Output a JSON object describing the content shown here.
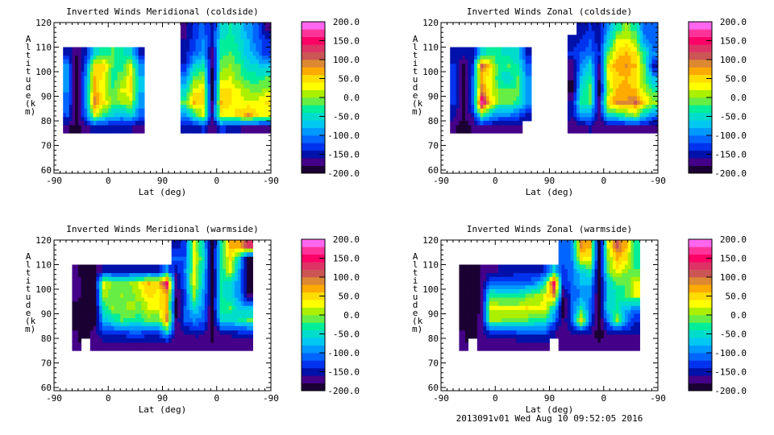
{
  "footer": "2013091v01 Wed Aug 10 09:52:05 2016",
  "colorbar": {
    "levels_min": -200,
    "levels_max": 200,
    "step": 20,
    "labels": [
      "200.0",
      "150.0",
      "100.0",
      "50.0",
      "0.0",
      "-50.0",
      "-100.0",
      "-150.0",
      "-200.0"
    ],
    "label_values": [
      200,
      150,
      100,
      50,
      0,
      -50,
      -100,
      -150,
      -200
    ],
    "colors": [
      "#1a0033",
      "#440088",
      "#0011aa",
      "#0033ee",
      "#0066ff",
      "#0099ff",
      "#00c8f0",
      "#00dccc",
      "#00ee99",
      "#66ee44",
      "#aaf000",
      "#ffff00",
      "#ffdd00",
      "#ffaa00",
      "#dd8833",
      "#cc5555",
      "#dd3366",
      "#ff0066",
      "#ff3399",
      "#ff66ee"
    ]
  },
  "chart_data": [
    {
      "type": "heatmap",
      "title": "Inverted Winds Meridional (coldside)",
      "xlabel": "Lat (deg)",
      "ylabel": "Altitude (km)",
      "xticks": [
        "-90",
        "0",
        "90",
        "0",
        "-90"
      ],
      "yticks": [
        "60",
        "70",
        "80",
        "90",
        "100",
        "110",
        "120"
      ],
      "ylim": [
        58.7,
        120
      ],
      "x_orbit_range": [
        0,
        360
      ],
      "x_step": 15,
      "alt_rows": [
        115,
        110,
        105,
        100,
        95,
        90,
        85,
        80,
        75
      ],
      "alt_step": 5,
      "values": [
        [
          null,
          null,
          null,
          null,
          null,
          null,
          null,
          null,
          null,
          null,
          null,
          null,
          null,
          null,
          -170,
          -140,
          -110,
          -150,
          -60,
          -40,
          -60,
          -90,
          -110,
          -170
        ],
        [
          null,
          null,
          null,
          null,
          null,
          null,
          null,
          null,
          null,
          null,
          null,
          null,
          null,
          null,
          -160,
          -130,
          -100,
          -150,
          -40,
          -30,
          -50,
          -80,
          -110,
          -140
        ],
        [
          null,
          -150,
          -180,
          -150,
          -60,
          -30,
          -20,
          -40,
          -60,
          -150,
          null,
          null,
          null,
          null,
          -150,
          -120,
          -90,
          -170,
          -30,
          -20,
          -40,
          -70,
          -100,
          -130
        ],
        [
          null,
          -100,
          -200,
          -120,
          40,
          50,
          -20,
          -30,
          20,
          -100,
          null,
          null,
          null,
          null,
          -140,
          -60,
          -40,
          -180,
          -10,
          0,
          -20,
          -50,
          -60,
          -80
        ],
        [
          null,
          -100,
          -200,
          -100,
          60,
          30,
          -30,
          -10,
          40,
          -80,
          null,
          null,
          null,
          null,
          -100,
          -10,
          0,
          -190,
          10,
          20,
          -10,
          -30,
          -30,
          -20
        ],
        [
          null,
          -100,
          -200,
          -90,
          70,
          20,
          -20,
          20,
          40,
          -80,
          null,
          null,
          null,
          null,
          -60,
          30,
          40,
          -190,
          50,
          40,
          20,
          0,
          -10,
          10
        ],
        [
          null,
          -110,
          -200,
          -90,
          90,
          40,
          -10,
          0,
          10,
          -90,
          null,
          null,
          null,
          null,
          -20,
          60,
          50,
          -180,
          60,
          40,
          30,
          20,
          30,
          40
        ],
        [
          null,
          -120,
          -190,
          -110,
          20,
          -30,
          -60,
          -70,
          -60,
          -110,
          null,
          null,
          null,
          null,
          -90,
          -40,
          20,
          -160,
          30,
          30,
          50,
          80,
          40,
          30
        ],
        [
          null,
          -180,
          -190,
          -170,
          -150,
          -160,
          -160,
          -160,
          -160,
          -170,
          null,
          null,
          null,
          null,
          -160,
          -150,
          -140,
          -180,
          -130,
          -150,
          -160,
          -170,
          -170,
          -170
        ]
      ]
    },
    {
      "type": "heatmap",
      "title": "Inverted Winds Zonal (coldside)",
      "xlabel": "Lat (deg)",
      "ylabel": "Altitude (km)",
      "xticks": [
        "-90",
        "0",
        "90",
        "0",
        "-90"
      ],
      "yticks": [
        "60",
        "70",
        "80",
        "90",
        "100",
        "110",
        "120"
      ],
      "ylim": [
        58.7,
        120
      ],
      "x_orbit_range": [
        0,
        360
      ],
      "x_step": 15,
      "alt_rows": [
        115,
        110,
        105,
        100,
        95,
        90,
        85,
        80,
        75
      ],
      "alt_step": 5,
      "values": [
        [
          null,
          null,
          null,
          null,
          null,
          null,
          null,
          null,
          null,
          null,
          null,
          null,
          null,
          null,
          null,
          -150,
          -140,
          -150,
          -90,
          -30,
          0,
          -30,
          -110,
          -120
        ],
        [
          null,
          null,
          null,
          null,
          null,
          null,
          null,
          null,
          null,
          null,
          null,
          null,
          null,
          null,
          -160,
          -140,
          -120,
          -150,
          -60,
          20,
          30,
          0,
          -90,
          -110
        ],
        [
          null,
          -150,
          -150,
          -160,
          -60,
          -30,
          -40,
          -50,
          -60,
          -150,
          null,
          null,
          null,
          null,
          -140,
          -120,
          -110,
          -140,
          -20,
          50,
          60,
          40,
          -40,
          -100
        ],
        [
          null,
          -140,
          -190,
          -130,
          100,
          40,
          -40,
          -20,
          -40,
          -110,
          null,
          null,
          null,
          null,
          -180,
          -100,
          -60,
          -170,
          40,
          70,
          80,
          60,
          -20,
          -150
        ],
        [
          null,
          -140,
          -190,
          -120,
          60,
          20,
          -40,
          -60,
          -20,
          -100,
          null,
          null,
          null,
          null,
          -180,
          -70,
          -30,
          -180,
          20,
          50,
          60,
          40,
          -10,
          -80
        ],
        [
          null,
          -140,
          -190,
          -120,
          90,
          20,
          -10,
          -20,
          -10,
          -100,
          null,
          null,
          null,
          null,
          -190,
          -50,
          -10,
          -190,
          0,
          60,
          70,
          60,
          10,
          -30
        ],
        [
          null,
          -140,
          -190,
          -120,
          170,
          50,
          -20,
          -10,
          -30,
          -90,
          null,
          null,
          null,
          null,
          -160,
          -30,
          -20,
          -170,
          50,
          80,
          80,
          100,
          50,
          0
        ],
        [
          null,
          -150,
          -190,
          -150,
          -20,
          -80,
          -100,
          -100,
          -120,
          -150,
          null,
          null,
          null,
          null,
          -150,
          -90,
          -90,
          -170,
          -50,
          -40,
          -20,
          0,
          -60,
          -100
        ],
        [
          null,
          -180,
          -190,
          -180,
          -170,
          -170,
          -170,
          -170,
          -170,
          null,
          null,
          null,
          null,
          null,
          -180,
          -170,
          -160,
          -180,
          -170,
          -170,
          -170,
          -170,
          -170,
          -170
        ]
      ]
    },
    {
      "type": "heatmap",
      "title": "Inverted Winds Meridional (warmside)",
      "xlabel": "Lat (deg)",
      "ylabel": "Altitude (km)",
      "xticks": [
        "-90",
        "0",
        "90",
        "0",
        "-90"
      ],
      "yticks": [
        "60",
        "70",
        "80",
        "90",
        "100",
        "110",
        "120"
      ],
      "ylim": [
        58.7,
        120
      ],
      "x_orbit_range": [
        0,
        360
      ],
      "x_step": 15,
      "alt_rows": [
        115,
        110,
        105,
        100,
        95,
        90,
        85,
        80,
        75
      ],
      "alt_step": 5,
      "values": [
        [
          null,
          null,
          null,
          null,
          null,
          null,
          null,
          null,
          null,
          null,
          null,
          null,
          null,
          -150,
          -130,
          20,
          -60,
          -190,
          -40,
          60,
          70,
          120,
          null,
          null
        ],
        [
          null,
          null,
          null,
          null,
          null,
          null,
          null,
          null,
          null,
          null,
          null,
          null,
          null,
          -120,
          -120,
          30,
          -40,
          -190,
          -30,
          40,
          -60,
          -190,
          null,
          null
        ],
        [
          null,
          null,
          -180,
          -190,
          -190,
          -150,
          -150,
          -150,
          -150,
          -150,
          -150,
          -150,
          -100,
          -160,
          -100,
          20,
          -60,
          -190,
          -40,
          20,
          -90,
          -190,
          null,
          null
        ],
        [
          null,
          null,
          -170,
          -190,
          -190,
          30,
          -10,
          -10,
          0,
          30,
          60,
          50,
          150,
          -180,
          -110,
          30,
          -70,
          -190,
          -40,
          -60,
          -90,
          -190,
          null,
          null
        ],
        [
          null,
          null,
          -170,
          -190,
          -190,
          10,
          -10,
          0,
          -10,
          10,
          50,
          30,
          70,
          -180,
          -130,
          0,
          -90,
          -190,
          -40,
          -60,
          -90,
          -180,
          null,
          null
        ],
        [
          null,
          null,
          -190,
          -190,
          -190,
          -40,
          0,
          -10,
          10,
          -10,
          20,
          30,
          60,
          -190,
          -120,
          -50,
          -100,
          -190,
          -30,
          -20,
          -70,
          -80,
          null,
          null
        ],
        [
          null,
          null,
          -190,
          -190,
          -190,
          -70,
          -50,
          -20,
          -30,
          -30,
          -10,
          -20,
          90,
          -180,
          -120,
          -100,
          -110,
          -190,
          -60,
          -60,
          -40,
          -20,
          null,
          null
        ],
        [
          null,
          null,
          -180,
          -190,
          -170,
          -130,
          -130,
          -130,
          -120,
          -120,
          -130,
          -130,
          -60,
          -170,
          -160,
          -150,
          -150,
          -190,
          -150,
          -150,
          -140,
          -140,
          null,
          null
        ],
        [
          null,
          null,
          -180,
          null,
          -170,
          -170,
          -170,
          -170,
          -170,
          -170,
          -170,
          -170,
          -180,
          -180,
          -180,
          -180,
          -180,
          -180,
          -180,
          -180,
          -180,
          -180,
          null,
          null
        ]
      ]
    },
    {
      "type": "heatmap",
      "title": "Inverted Winds Zonal (warmside)",
      "xlabel": "Lat (deg)",
      "ylabel": "Altitude (km)",
      "xticks": [
        "-90",
        "0",
        "90",
        "0",
        "-90"
      ],
      "yticks": [
        "60",
        "70",
        "80",
        "90",
        "100",
        "110",
        "120"
      ],
      "ylim": [
        58.7,
        120
      ],
      "x_orbit_range": [
        0,
        360
      ],
      "x_step": 15,
      "alt_rows": [
        115,
        110,
        105,
        100,
        95,
        90,
        85,
        80,
        75
      ],
      "alt_step": 5,
      "values": [
        [
          null,
          null,
          null,
          null,
          null,
          null,
          null,
          null,
          null,
          null,
          null,
          null,
          null,
          -110,
          -100,
          80,
          60,
          -190,
          20,
          110,
          60,
          -40,
          null,
          null
        ],
        [
          null,
          null,
          null,
          null,
          null,
          null,
          null,
          null,
          null,
          null,
          null,
          null,
          null,
          -110,
          -100,
          40,
          30,
          -190,
          0,
          60,
          40,
          -40,
          null,
          null
        ],
        [
          null,
          null,
          -190,
          -190,
          -180,
          -170,
          -160,
          -160,
          -150,
          -150,
          -150,
          -140,
          -60,
          -130,
          -110,
          -60,
          -40,
          -190,
          -10,
          30,
          0,
          -20,
          null,
          null
        ],
        [
          null,
          null,
          -190,
          -190,
          -180,
          -110,
          -110,
          -110,
          -110,
          -110,
          -100,
          -40,
          150,
          -140,
          -110,
          -80,
          -80,
          -190,
          -60,
          -20,
          -20,
          20,
          null,
          null
        ],
        [
          null,
          null,
          -190,
          -190,
          -180,
          -30,
          -40,
          -40,
          -40,
          -20,
          0,
          20,
          80,
          -180,
          -120,
          -100,
          -100,
          -190,
          -60,
          -40,
          -20,
          20,
          null,
          null
        ],
        [
          null,
          null,
          -190,
          -190,
          -180,
          30,
          20,
          20,
          20,
          40,
          20,
          30,
          -50,
          -190,
          -120,
          -40,
          -110,
          -190,
          -50,
          -40,
          -70,
          -100,
          null,
          null
        ],
        [
          null,
          null,
          -190,
          -190,
          -170,
          0,
          0,
          -10,
          -10,
          -20,
          -30,
          -40,
          -100,
          -180,
          -120,
          50,
          -120,
          -190,
          -100,
          0,
          -100,
          -140,
          null,
          null
        ],
        [
          null,
          null,
          -180,
          -190,
          -170,
          -140,
          -140,
          -130,
          -120,
          -120,
          -120,
          -120,
          -160,
          -180,
          -160,
          -150,
          -160,
          -190,
          -160,
          -160,
          -150,
          -150,
          null,
          null
        ],
        [
          null,
          null,
          -180,
          null,
          -180,
          -180,
          -180,
          -180,
          -180,
          -180,
          -180,
          -180,
          null,
          -180,
          -180,
          -180,
          -180,
          -180,
          -180,
          -180,
          -180,
          -180,
          null,
          null
        ]
      ]
    }
  ]
}
